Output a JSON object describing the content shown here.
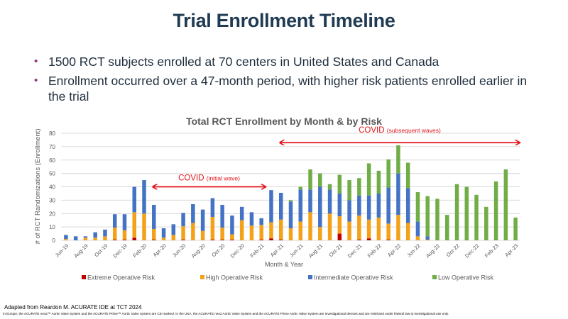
{
  "slide": {
    "title": "Trial Enrollment Timeline",
    "bullets": [
      "1500 RCT subjects enrolled at 70 centers in United States and Canada",
      "Enrollment occurred over a 47-month period, with higher risk patients enrolled earlier in the trial"
    ],
    "footer_citation": "Adapted from Reardon M.  ACURATE IDE at TCT 2024",
    "footer_disclaimer": "In Europe, the ACURATE neo2™ Aortic Valve System and the ACURATE Prime™ Aortic Valve System are CE-marked. In the USA, the ACURATE neo2 Aortic Valve System and the ACURATE Prime Aortic Valve System are investigational devices and are restricted under federal law to investigational use only."
  },
  "chart_data": {
    "type": "bar",
    "stacked": true,
    "title": "Total RCT Enrollment by Month & by Risk",
    "xlabel": "Month & Year",
    "ylabel": "# of RCT Randomizations (Enrollment)",
    "ylim": [
      0,
      80
    ],
    "yticks": [
      0,
      10,
      20,
      30,
      40,
      50,
      60,
      70,
      80
    ],
    "grid": true,
    "legend_position": "bottom",
    "categories": [
      "Jun-19",
      "Jul-19",
      "Aug-19",
      "Sep-19",
      "Oct-19",
      "Nov-19",
      "Dec-19",
      "Jan-20",
      "Feb-20",
      "Mar-20",
      "Apr-20",
      "May-20",
      "Jun-20",
      "Jul-20",
      "Aug-20",
      "Sep-20",
      "Oct-20",
      "Nov-20",
      "Dec-20",
      "Jan-21",
      "Feb-21",
      "Mar-21",
      "Apr-21",
      "May-21",
      "Jun-21",
      "Jul-21",
      "Aug-21",
      "Sep-21",
      "Oct-21",
      "Nov-21",
      "Dec-21",
      "Jan-22",
      "Feb-22",
      "Mar-22",
      "Apr-22",
      "May-22",
      "Jun-22",
      "Jul-22",
      "Aug-22",
      "Sep-22",
      "Oct-22",
      "Nov-22",
      "Dec-22",
      "Jan-23",
      "Feb-23",
      "Mar-23",
      "Apr-23"
    ],
    "tick_labels": [
      "Jun-19",
      "Aug-19",
      "Oct-19",
      "Dec-19",
      "Feb-20",
      "Apr-20",
      "Jun-20",
      "Aug-20",
      "Oct-20",
      "Dec-20",
      "Feb-21",
      "Apr-21",
      "Jun-21",
      "Aug-21",
      "Oct-21",
      "Dec-21",
      "Feb-22",
      "Apr-22",
      "Jun-22",
      "Aug-22",
      "Oct-22",
      "Dec-22",
      "Feb-23",
      "Apr-23"
    ],
    "series": [
      {
        "name": "Extreme Operative Risk",
        "color": "#c00000",
        "values": [
          0,
          0,
          0,
          0,
          0,
          0.5,
          0.5,
          2,
          0,
          0.5,
          0,
          0,
          0.5,
          0,
          0,
          0.5,
          0.5,
          0.5,
          0,
          0,
          0.5,
          1.5,
          0.5,
          0,
          0,
          0,
          0,
          0,
          5,
          0,
          0.5,
          1.5,
          0,
          0.5,
          0,
          0,
          0,
          0,
          0,
          0,
          0,
          0,
          0,
          0,
          0,
          0,
          0
        ]
      },
      {
        "name": "High Operative Risk",
        "color": "#f4a11a",
        "values": [
          1,
          0,
          2,
          2,
          3,
          9,
          7,
          19,
          20,
          8,
          2,
          4,
          10,
          13,
          7,
          17,
          9,
          4,
          15,
          11,
          11,
          12,
          15,
          9,
          14,
          21,
          10,
          20,
          13,
          14,
          18,
          14,
          17,
          12,
          19,
          13,
          3,
          0.5,
          0,
          0,
          0,
          0,
          0,
          0,
          0,
          0,
          0
        ]
      },
      {
        "name": "Intermediate Operative Risk",
        "color": "#4472c4",
        "values": [
          3,
          3,
          1,
          4,
          5,
          10,
          12,
          19,
          25,
          18,
          7,
          8,
          10,
          14,
          16,
          14,
          17,
          14,
          10,
          10,
          5,
          24,
          20,
          20,
          24,
          17,
          30,
          18,
          17,
          16,
          15,
          18,
          18,
          27,
          31,
          26,
          11,
          2.5,
          0,
          0,
          0,
          0,
          0,
          0,
          0,
          0,
          0
        ]
      },
      {
        "name": "Low Operative Risk",
        "color": "#70ad47",
        "values": [
          0,
          0,
          0,
          0,
          0,
          0,
          0,
          0,
          0,
          0,
          0,
          0,
          0,
          0,
          0,
          0,
          0,
          0,
          0,
          0,
          0,
          0,
          0,
          1,
          2,
          15,
          10,
          4,
          14,
          15,
          13,
          24,
          17,
          21,
          21,
          19,
          22,
          30,
          31,
          19,
          42,
          40,
          34,
          25,
          44,
          53,
          17
        ]
      }
    ],
    "annotations": [
      {
        "text": "COVID",
        "subtext": "(initial wave)",
        "from": "Feb-20",
        "to": "Mar-21",
        "color": "#e2141b",
        "type": "double-arrow"
      },
      {
        "text": "COVID",
        "subtext": "(subsequent waves)",
        "from": "Mar-21",
        "to": "Apr-23",
        "color": "#e2141b",
        "type": "double-arrow"
      }
    ]
  }
}
